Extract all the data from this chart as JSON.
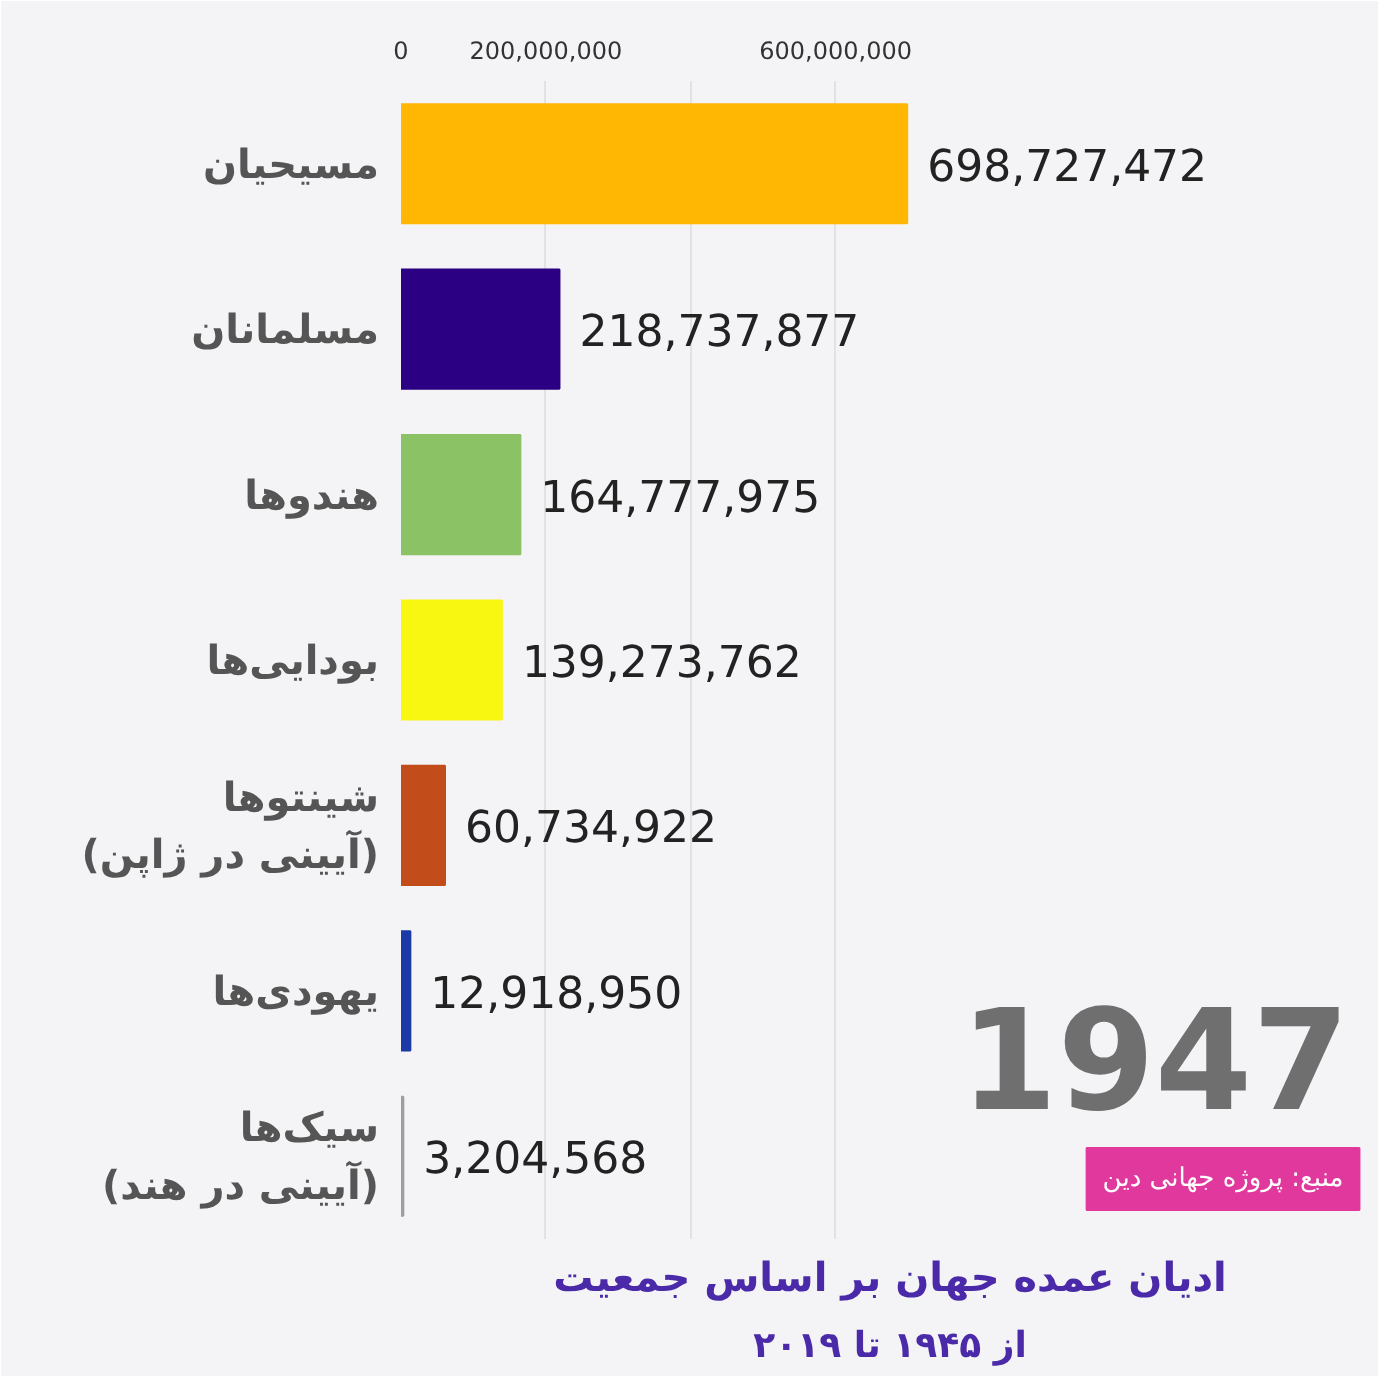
{
  "chart_data": {
    "type": "bar",
    "orientation": "horizontal",
    "title": "ادیان عمده جهان بر اساس جمعیت",
    "subtitle": "از ۱۹۴۵ تا ۲۰۱۹",
    "categories": [
      "مسیحیان",
      "مسلمانان",
      "هندوها",
      "بودایی‌ها",
      "شینتوها\n(آیینی در ژاپن)",
      "یهودی‌ها",
      "سیک‌ها\n(آیینی در هند)"
    ],
    "values": [
      698727472,
      218737877,
      164777975,
      139273762,
      60734922,
      12918950,
      3204568
    ],
    "colors": [
      "#ffb703",
      "#2b0082",
      "#8bc266",
      "#f7f711",
      "#c24d1a",
      "#1c3aa6",
      "#9e9e9e"
    ],
    "value_labels": [
      "698,727,472",
      "218,737,877",
      "164,777,975",
      "139,273,762",
      "60,734,922",
      "12,918,950",
      "3,204,568"
    ],
    "xlim": [
      0,
      1350000000
    ],
    "xticks": [
      0,
      {
        "value": 200000000,
        "label": "200,000,000"
      },
      {
        "value": 400000000,
        "label": null
      },
      {
        "value": 600000000,
        "label": "600,000,000"
      }
    ],
    "grid": "x",
    "annotations": [
      "1947",
      "منبع: پروژه جهانی دین"
    ]
  }
}
